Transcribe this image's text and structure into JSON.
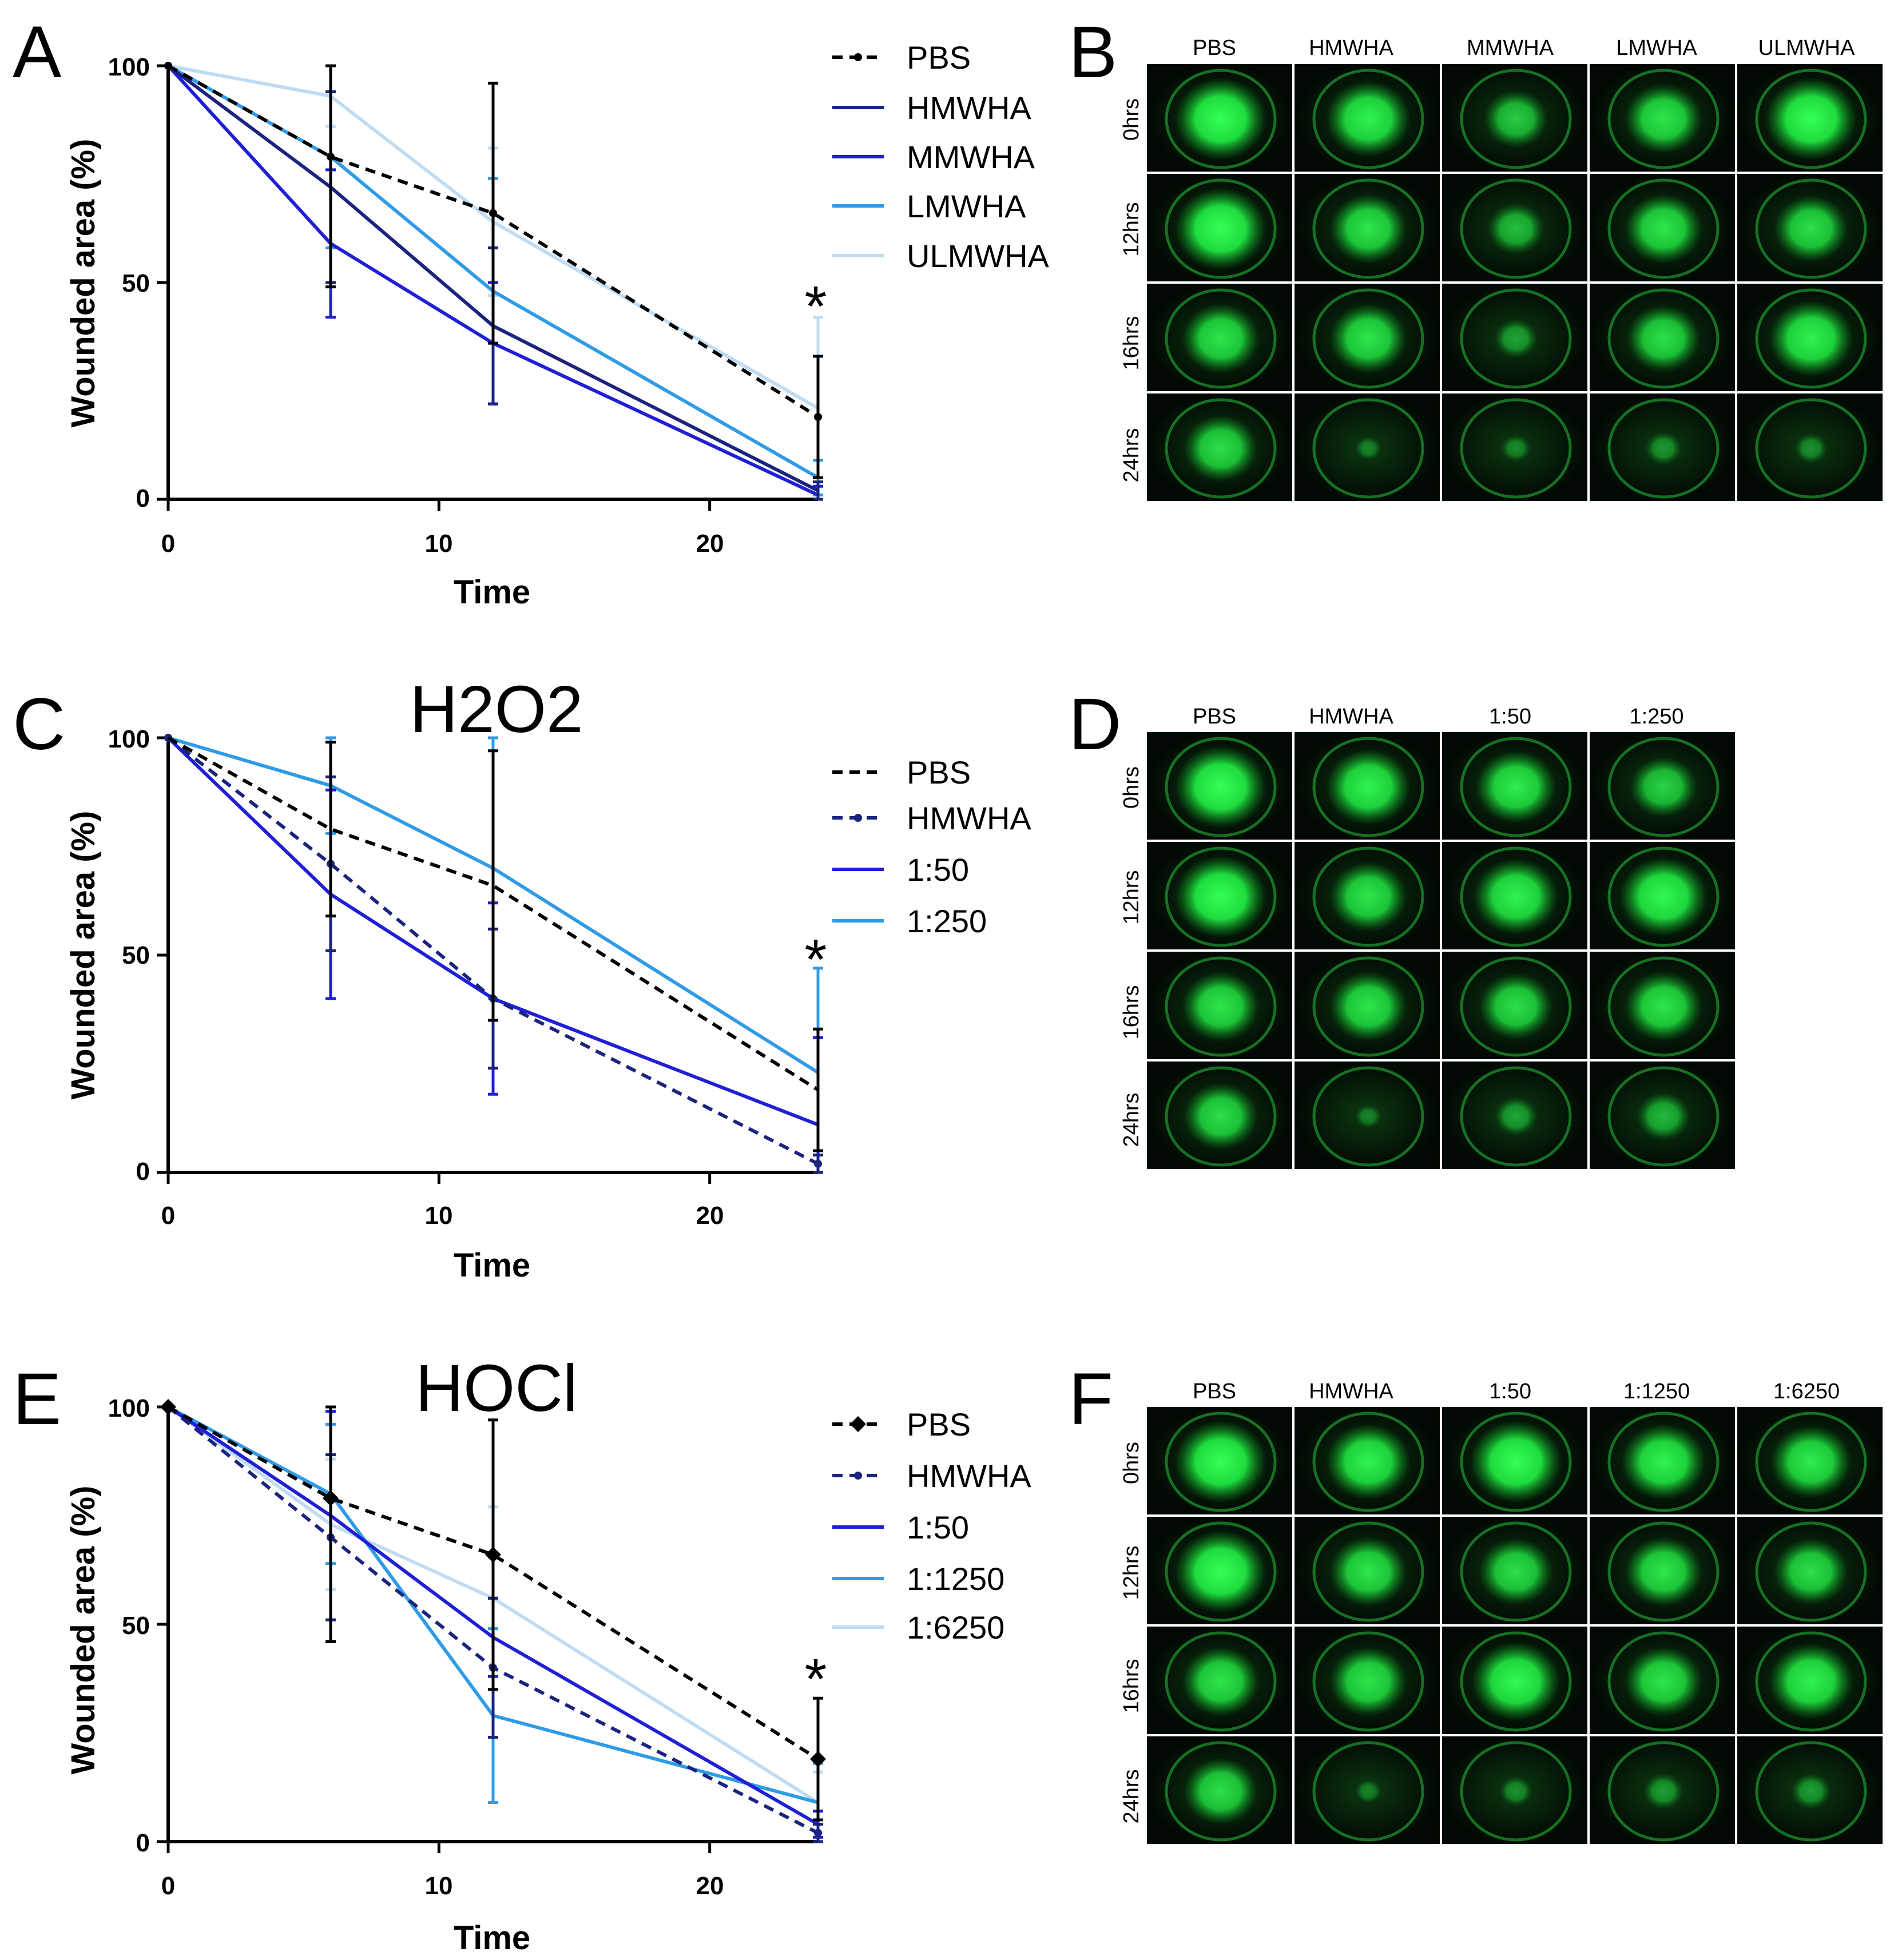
{
  "chart_data": [
    {
      "panel": "A",
      "type": "line",
      "title": "",
      "xlabel": "Time",
      "ylabel": "Wounded area (%)",
      "xlim": [
        0,
        24
      ],
      "ylim": [
        0,
        100
      ],
      "xticks": [
        "0",
        "10",
        "20"
      ],
      "yticks": [
        "0",
        "50",
        "100"
      ],
      "x": [
        0,
        6,
        12,
        24
      ],
      "series": [
        {
          "name": "PBS",
          "values": [
            100,
            79,
            66,
            19
          ],
          "err": [
            0,
            30,
            30,
            14
          ],
          "color": "#000000",
          "dashed": true,
          "marker": "dot"
        },
        {
          "name": "HMWHA",
          "values": [
            100,
            72,
            40,
            2
          ],
          "err": [
            0,
            22,
            18,
            2
          ],
          "color": "#1a237e",
          "dashed": false,
          "marker": "none"
        },
        {
          "name": "MMWHA",
          "values": [
            100,
            59,
            36,
            1
          ],
          "err": [
            0,
            17,
            14,
            2
          ],
          "color": "#1f1fd6",
          "dashed": false,
          "marker": "none"
        },
        {
          "name": "LMWHA",
          "values": [
            100,
            79,
            48,
            5
          ],
          "err": [
            0,
            21,
            26,
            4
          ],
          "color": "#2f9be6",
          "dashed": false,
          "marker": "none"
        },
        {
          "name": "ULMWHA",
          "values": [
            100,
            93,
            64,
            21
          ],
          "err": [
            0,
            7,
            17,
            21
          ],
          "color": "#bfdcf2",
          "dashed": false,
          "marker": "none"
        }
      ],
      "annotation": "*"
    },
    {
      "panel": "C",
      "type": "line",
      "title": "H2O2",
      "xlabel": "Time",
      "ylabel": "Wounded area (%)",
      "xlim": [
        0,
        24
      ],
      "ylim": [
        0,
        100
      ],
      "xticks": [
        "0",
        "10",
        "20"
      ],
      "yticks": [
        "0",
        "50",
        "100"
      ],
      "x": [
        0,
        6,
        12,
        24
      ],
      "series": [
        {
          "name": "PBS",
          "values": [
            100,
            79,
            66,
            19
          ],
          "err": [
            0,
            20,
            31,
            14
          ],
          "color": "#000000",
          "dashed": true,
          "marker": "none"
        },
        {
          "name": "HMWHA",
          "values": [
            100,
            71,
            40,
            2
          ],
          "err": [
            0,
            20,
            16,
            2
          ],
          "color": "#1a237e",
          "dashed": true,
          "marker": "dot"
        },
        {
          "name": "1:50",
          "values": [
            100,
            64,
            40,
            11
          ],
          "err": [
            0,
            24,
            22,
            20
          ],
          "color": "#1f1fd6",
          "dashed": false,
          "marker": "none"
        },
        {
          "name": "1:250",
          "values": [
            100,
            89,
            70,
            23
          ],
          "err": [
            0,
            11,
            30,
            24
          ],
          "color": "#2f9be6",
          "dashed": false,
          "marker": "none"
        }
      ],
      "annotation": "*"
    },
    {
      "panel": "E",
      "type": "line",
      "title": "HOCl",
      "xlabel": "Time",
      "ylabel": "Wounded area (%)",
      "xlim": [
        0,
        24
      ],
      "ylim": [
        0,
        100
      ],
      "xticks": [
        "0",
        "10",
        "20"
      ],
      "yticks": [
        "0",
        "50",
        "100"
      ],
      "x": [
        0,
        6,
        12,
        24
      ],
      "series": [
        {
          "name": "PBS",
          "values": [
            100,
            79,
            66,
            19
          ],
          "err": [
            0,
            33,
            31,
            14
          ],
          "color": "#000000",
          "dashed": true,
          "marker": "diamond"
        },
        {
          "name": "HMWHA",
          "values": [
            100,
            70,
            40,
            2
          ],
          "err": [
            0,
            19,
            16,
            2
          ],
          "color": "#1a237e",
          "dashed": true,
          "marker": "dot"
        },
        {
          "name": "1:50",
          "values": [
            100,
            75,
            47,
            4
          ],
          "err": [
            0,
            24,
            9,
            3
          ],
          "color": "#1f1fd6",
          "dashed": false,
          "marker": "none"
        },
        {
          "name": "1:1250",
          "values": [
            100,
            80,
            29,
            9
          ],
          "err": [
            0,
            16,
            20,
            9
          ],
          "color": "#2f9be6",
          "dashed": false,
          "marker": "none"
        },
        {
          "name": "1:6250",
          "values": [
            100,
            73,
            56,
            9
          ],
          "err": [
            0,
            15,
            21,
            7
          ],
          "color": "#bfdcf2",
          "dashed": false,
          "marker": "none"
        }
      ],
      "annotation": "*"
    }
  ],
  "panels": {
    "A": "A",
    "B": "B",
    "C": "C",
    "D": "D",
    "E": "E",
    "F": "F"
  },
  "grids": [
    {
      "panel": "B",
      "columns": [
        "PBS",
        "HMWHA",
        "MMWHA",
        "LMWHA",
        "ULMWHA"
      ],
      "rows": [
        "0hrs",
        "12hrs",
        "16hrs",
        "24hrs"
      ],
      "spot_intensity": [
        [
          1.0,
          0.9,
          0.6,
          0.8,
          1.0
        ],
        [
          1.0,
          0.8,
          0.5,
          0.8,
          0.75
        ],
        [
          0.8,
          0.8,
          0.3,
          0.75,
          0.9
        ],
        [
          0.75,
          0.05,
          0.1,
          0.2,
          0.15
        ]
      ]
    },
    {
      "panel": "D",
      "columns": [
        "PBS",
        "HMWHA",
        "1:50",
        "1:250"
      ],
      "rows": [
        "0hrs",
        "12hrs",
        "16hrs",
        "24hrs"
      ],
      "spot_intensity": [
        [
          1.0,
          0.9,
          0.85,
          0.65
        ],
        [
          1.0,
          0.8,
          0.9,
          0.95
        ],
        [
          0.8,
          0.8,
          0.75,
          0.8
        ],
        [
          0.75,
          0.05,
          0.3,
          0.45
        ]
      ]
    },
    {
      "panel": "F",
      "columns": [
        "PBS",
        "HMWHA",
        "1:50",
        "1:1250",
        "1:6250"
      ],
      "rows": [
        "0hrs",
        "12hrs",
        "16hrs",
        "24hrs"
      ],
      "spot_intensity": [
        [
          1.0,
          0.9,
          1.0,
          0.9,
          0.85
        ],
        [
          1.0,
          0.8,
          0.75,
          0.8,
          0.75
        ],
        [
          0.8,
          0.8,
          0.95,
          0.8,
          0.9
        ],
        [
          0.75,
          0.05,
          0.15,
          0.25,
          0.25
        ]
      ]
    }
  ]
}
